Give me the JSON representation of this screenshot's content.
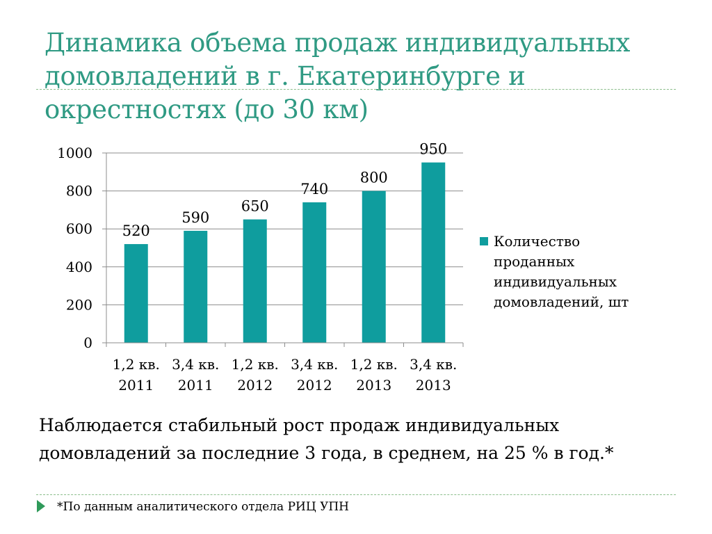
{
  "title": "Динамика объема продаж индивидуальных домовладений в г. Екатеринбурге и окрестностях (до 30 км)",
  "summary": "Наблюдается стабильный рост продаж индивидуальных домовладений за последние 3 года, в среднем, на 25 % в год.*",
  "footnote": "*По данным аналитического отдела РИЦ УПН",
  "colors": {
    "title": "#2f9a83",
    "bar": "#0f9d9e",
    "accent": "#2f9a5a"
  },
  "icons": {
    "footnote_marker": "play-triangle-icon"
  },
  "chart_data": {
    "type": "bar",
    "categories": [
      [
        "1,2 кв.",
        "2011"
      ],
      [
        "3,4 кв.",
        "2011"
      ],
      [
        "1,2 кв.",
        "2012"
      ],
      [
        "3,4 кв.",
        "2012"
      ],
      [
        "1,2 кв.",
        "2013"
      ],
      [
        "3,4 кв.",
        "2013"
      ]
    ],
    "series": [
      {
        "name": "Количество проданных индивидуальных домовладений, шт",
        "values": [
          520,
          590,
          650,
          740,
          800,
          950
        ]
      }
    ],
    "data_labels": [
      "520",
      "590",
      "650",
      "740",
      "800",
      "950"
    ],
    "yticks": [
      0,
      200,
      400,
      600,
      800,
      1000
    ],
    "ylim": [
      0,
      1000
    ],
    "grid": true,
    "legend_position": "right"
  }
}
